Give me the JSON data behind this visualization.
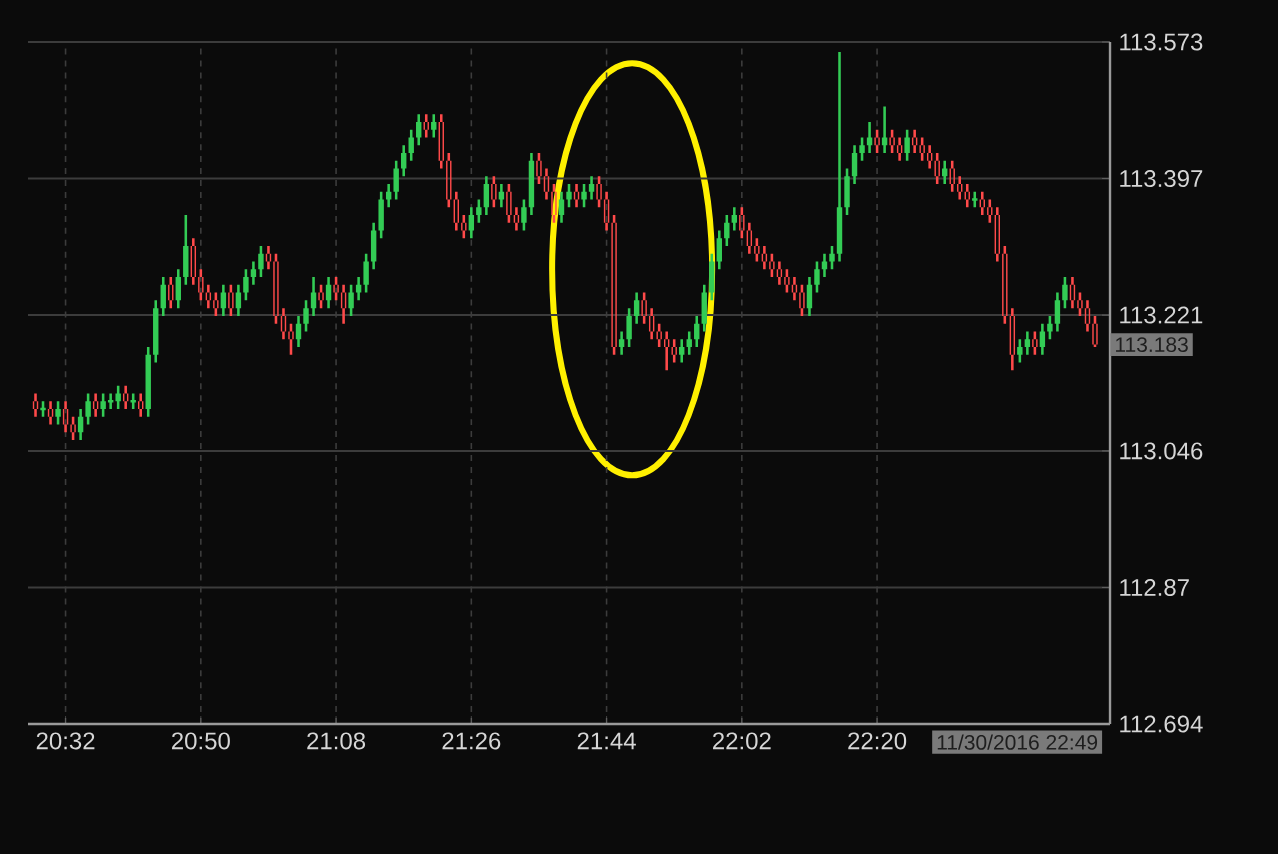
{
  "chart_data": {
    "type": "candlestick",
    "x": [
      "2016-11-30T20:28",
      "2016-11-30T20:29",
      "2016-11-30T20:30",
      "2016-11-30T20:31",
      "2016-11-30T20:32",
      "2016-11-30T20:33",
      "2016-11-30T20:34",
      "2016-11-30T20:35",
      "2016-11-30T20:36",
      "2016-11-30T20:37",
      "2016-11-30T20:38",
      "2016-11-30T20:39",
      "2016-11-30T20:40",
      "2016-11-30T20:41",
      "2016-11-30T20:42",
      "2016-11-30T20:43",
      "2016-11-30T20:44",
      "2016-11-30T20:45",
      "2016-11-30T20:46",
      "2016-11-30T20:47",
      "2016-11-30T20:48",
      "2016-11-30T20:49",
      "2016-11-30T20:50",
      "2016-11-30T20:51",
      "2016-11-30T20:52",
      "2016-11-30T20:53",
      "2016-11-30T20:54",
      "2016-11-30T20:55",
      "2016-11-30T20:56",
      "2016-11-30T20:57",
      "2016-11-30T20:58",
      "2016-11-30T20:59",
      "2016-11-30T21:00",
      "2016-11-30T21:01",
      "2016-11-30T21:02",
      "2016-11-30T21:03",
      "2016-11-30T21:04",
      "2016-11-30T21:05",
      "2016-11-30T21:06",
      "2016-11-30T21:07",
      "2016-11-30T21:08",
      "2016-11-30T21:09",
      "2016-11-30T21:10",
      "2016-11-30T21:11",
      "2016-11-30T21:12",
      "2016-11-30T21:13",
      "2016-11-30T21:14",
      "2016-11-30T21:15",
      "2016-11-30T21:16",
      "2016-11-30T21:17",
      "2016-11-30T21:18",
      "2016-11-30T21:19",
      "2016-11-30T21:20",
      "2016-11-30T21:21",
      "2016-11-30T21:22",
      "2016-11-30T21:23",
      "2016-11-30T21:24",
      "2016-11-30T21:25",
      "2016-11-30T21:26",
      "2016-11-30T21:27",
      "2016-11-30T21:28",
      "2016-11-30T21:29",
      "2016-11-30T21:30",
      "2016-11-30T21:31",
      "2016-11-30T21:32",
      "2016-11-30T21:33",
      "2016-11-30T21:34",
      "2016-11-30T21:35",
      "2016-11-30T21:36",
      "2016-11-30T21:37",
      "2016-11-30T21:38",
      "2016-11-30T21:39",
      "2016-11-30T21:40",
      "2016-11-30T21:41",
      "2016-11-30T21:42",
      "2016-11-30T21:43",
      "2016-11-30T21:44",
      "2016-11-30T21:45",
      "2016-11-30T21:46",
      "2016-11-30T21:47",
      "2016-11-30T21:48",
      "2016-11-30T21:49",
      "2016-11-30T21:50",
      "2016-11-30T21:51",
      "2016-11-30T21:52",
      "2016-11-30T21:53",
      "2016-11-30T21:54",
      "2016-11-30T21:55",
      "2016-11-30T21:56",
      "2016-11-30T21:57",
      "2016-11-30T21:58",
      "2016-11-30T21:59",
      "2016-11-30T22:00",
      "2016-11-30T22:01",
      "2016-11-30T22:02",
      "2016-11-30T22:03",
      "2016-11-30T22:04",
      "2016-11-30T22:05",
      "2016-11-30T22:06",
      "2016-11-30T22:07",
      "2016-11-30T22:08",
      "2016-11-30T22:09",
      "2016-11-30T22:10",
      "2016-11-30T22:11",
      "2016-11-30T22:12",
      "2016-11-30T22:13",
      "2016-11-30T22:14",
      "2016-11-30T22:15",
      "2016-11-30T22:16",
      "2016-11-30T22:17",
      "2016-11-30T22:18",
      "2016-11-30T22:19",
      "2016-11-30T22:20",
      "2016-11-30T22:21",
      "2016-11-30T22:22",
      "2016-11-30T22:23",
      "2016-11-30T22:24",
      "2016-11-30T22:25",
      "2016-11-30T22:26",
      "2016-11-30T22:27",
      "2016-11-30T22:28",
      "2016-11-30T22:29",
      "2016-11-30T22:30",
      "2016-11-30T22:31",
      "2016-11-30T22:32",
      "2016-11-30T22:33",
      "2016-11-30T22:34",
      "2016-11-30T22:35",
      "2016-11-30T22:36",
      "2016-11-30T22:37",
      "2016-11-30T22:38",
      "2016-11-30T22:39",
      "2016-11-30T22:40",
      "2016-11-30T22:41",
      "2016-11-30T22:42",
      "2016-11-30T22:43",
      "2016-11-30T22:44",
      "2016-11-30T22:45",
      "2016-11-30T22:46",
      "2016-11-30T22:47",
      "2016-11-30T22:48",
      "2016-11-30T22:49"
    ],
    "ohlc": [
      [
        113.11,
        113.12,
        113.09,
        113.1
      ],
      [
        113.1,
        113.11,
        113.09,
        113.1
      ],
      [
        113.1,
        113.11,
        113.08,
        113.09
      ],
      [
        113.09,
        113.11,
        113.08,
        113.1
      ],
      [
        113.1,
        113.11,
        113.07,
        113.08
      ],
      [
        113.08,
        113.09,
        113.06,
        113.07
      ],
      [
        113.07,
        113.1,
        113.06,
        113.09
      ],
      [
        113.09,
        113.12,
        113.08,
        113.11
      ],
      [
        113.11,
        113.12,
        113.09,
        113.1
      ],
      [
        113.1,
        113.12,
        113.09,
        113.11
      ],
      [
        113.11,
        113.12,
        113.1,
        113.11
      ],
      [
        113.11,
        113.13,
        113.1,
        113.12
      ],
      [
        113.12,
        113.13,
        113.1,
        113.11
      ],
      [
        113.11,
        113.12,
        113.1,
        113.11
      ],
      [
        113.11,
        113.12,
        113.09,
        113.1
      ],
      [
        113.1,
        113.18,
        113.09,
        113.17
      ],
      [
        113.17,
        113.24,
        113.16,
        113.23
      ],
      [
        113.23,
        113.27,
        113.22,
        113.26
      ],
      [
        113.26,
        113.27,
        113.23,
        113.24
      ],
      [
        113.24,
        113.28,
        113.23,
        113.27
      ],
      [
        113.27,
        113.35,
        113.26,
        113.31
      ],
      [
        113.31,
        113.32,
        113.26,
        113.27
      ],
      [
        113.27,
        113.28,
        113.24,
        113.25
      ],
      [
        113.25,
        113.26,
        113.23,
        113.24
      ],
      [
        113.24,
        113.25,
        113.22,
        113.23
      ],
      [
        113.23,
        113.26,
        113.22,
        113.25
      ],
      [
        113.25,
        113.26,
        113.22,
        113.23
      ],
      [
        113.23,
        113.26,
        113.22,
        113.25
      ],
      [
        113.25,
        113.28,
        113.24,
        113.27
      ],
      [
        113.27,
        113.29,
        113.26,
        113.28
      ],
      [
        113.28,
        113.31,
        113.27,
        113.3
      ],
      [
        113.3,
        113.31,
        113.28,
        113.29
      ],
      [
        113.29,
        113.3,
        113.21,
        113.22
      ],
      [
        113.22,
        113.23,
        113.19,
        113.2
      ],
      [
        113.2,
        113.21,
        113.17,
        113.19
      ],
      [
        113.19,
        113.22,
        113.18,
        113.21
      ],
      [
        113.21,
        113.24,
        113.2,
        113.23
      ],
      [
        113.23,
        113.27,
        113.22,
        113.25
      ],
      [
        113.25,
        113.26,
        113.23,
        113.24
      ],
      [
        113.24,
        113.27,
        113.23,
        113.26
      ],
      [
        113.26,
        113.27,
        113.24,
        113.25
      ],
      [
        113.25,
        113.26,
        113.21,
        113.23
      ],
      [
        113.23,
        113.26,
        113.22,
        113.25
      ],
      [
        113.25,
        113.27,
        113.24,
        113.26
      ],
      [
        113.26,
        113.3,
        113.25,
        113.29
      ],
      [
        113.29,
        113.34,
        113.28,
        113.33
      ],
      [
        113.33,
        113.38,
        113.32,
        113.37
      ],
      [
        113.37,
        113.39,
        113.36,
        113.38
      ],
      [
        113.38,
        113.42,
        113.37,
        113.41
      ],
      [
        113.41,
        113.44,
        113.4,
        113.43
      ],
      [
        113.43,
        113.46,
        113.42,
        113.45
      ],
      [
        113.45,
        113.48,
        113.44,
        113.47
      ],
      [
        113.47,
        113.48,
        113.45,
        113.46
      ],
      [
        113.46,
        113.48,
        113.45,
        113.47
      ],
      [
        113.47,
        113.48,
        113.41,
        113.42
      ],
      [
        113.42,
        113.43,
        113.36,
        113.37
      ],
      [
        113.37,
        113.38,
        113.33,
        113.34
      ],
      [
        113.34,
        113.35,
        113.32,
        113.33
      ],
      [
        113.33,
        113.36,
        113.32,
        113.35
      ],
      [
        113.35,
        113.37,
        113.34,
        113.36
      ],
      [
        113.36,
        113.4,
        113.35,
        113.39
      ],
      [
        113.39,
        113.4,
        113.36,
        113.37
      ],
      [
        113.37,
        113.39,
        113.36,
        113.38
      ],
      [
        113.38,
        113.39,
        113.34,
        113.35
      ],
      [
        113.35,
        113.36,
        113.33,
        113.34
      ],
      [
        113.34,
        113.37,
        113.33,
        113.36
      ],
      [
        113.36,
        113.43,
        113.35,
        113.42
      ],
      [
        113.42,
        113.43,
        113.39,
        113.4
      ],
      [
        113.4,
        113.41,
        113.37,
        113.38
      ],
      [
        113.38,
        113.39,
        113.34,
        113.35
      ],
      [
        113.35,
        113.38,
        113.34,
        113.37
      ],
      [
        113.37,
        113.39,
        113.36,
        113.38
      ],
      [
        113.38,
        113.39,
        113.36,
        113.37
      ],
      [
        113.37,
        113.39,
        113.36,
        113.38
      ],
      [
        113.38,
        113.4,
        113.37,
        113.39
      ],
      [
        113.39,
        113.4,
        113.36,
        113.37
      ],
      [
        113.37,
        113.38,
        113.33,
        113.34
      ],
      [
        113.34,
        113.35,
        113.17,
        113.18
      ],
      [
        113.18,
        113.2,
        113.17,
        113.19
      ],
      [
        113.19,
        113.23,
        113.18,
        113.22
      ],
      [
        113.22,
        113.25,
        113.21,
        113.24
      ],
      [
        113.24,
        113.25,
        113.21,
        113.22
      ],
      [
        113.22,
        113.23,
        113.19,
        113.2
      ],
      [
        113.2,
        113.21,
        113.18,
        113.19
      ],
      [
        113.19,
        113.2,
        113.15,
        113.18
      ],
      [
        113.18,
        113.19,
        113.16,
        113.17
      ],
      [
        113.17,
        113.19,
        113.16,
        113.18
      ],
      [
        113.18,
        113.2,
        113.17,
        113.19
      ],
      [
        113.19,
        113.22,
        113.18,
        113.21
      ],
      [
        113.21,
        113.26,
        113.2,
        113.25
      ],
      [
        113.25,
        113.3,
        113.24,
        113.29
      ],
      [
        113.29,
        113.33,
        113.28,
        113.32
      ],
      [
        113.32,
        113.35,
        113.31,
        113.34
      ],
      [
        113.34,
        113.36,
        113.33,
        113.35
      ],
      [
        113.35,
        113.36,
        113.32,
        113.33
      ],
      [
        113.33,
        113.34,
        113.3,
        113.31
      ],
      [
        113.31,
        113.32,
        113.29,
        113.3
      ],
      [
        113.3,
        113.31,
        113.28,
        113.29
      ],
      [
        113.29,
        113.3,
        113.27,
        113.28
      ],
      [
        113.28,
        113.29,
        113.26,
        113.27
      ],
      [
        113.27,
        113.28,
        113.25,
        113.26
      ],
      [
        113.26,
        113.27,
        113.24,
        113.25
      ],
      [
        113.25,
        113.26,
        113.22,
        113.23
      ],
      [
        113.23,
        113.27,
        113.22,
        113.26
      ],
      [
        113.26,
        113.29,
        113.25,
        113.28
      ],
      [
        113.28,
        113.3,
        113.27,
        113.29
      ],
      [
        113.29,
        113.31,
        113.28,
        113.3
      ],
      [
        113.3,
        113.56,
        113.29,
        113.36
      ],
      [
        113.36,
        113.41,
        113.35,
        113.4
      ],
      [
        113.4,
        113.44,
        113.39,
        113.43
      ],
      [
        113.43,
        113.45,
        113.42,
        113.44
      ],
      [
        113.44,
        113.47,
        113.43,
        113.45
      ],
      [
        113.45,
        113.46,
        113.43,
        113.44
      ],
      [
        113.44,
        113.49,
        113.43,
        113.45
      ],
      [
        113.45,
        113.46,
        113.43,
        113.44
      ],
      [
        113.44,
        113.45,
        113.42,
        113.43
      ],
      [
        113.43,
        113.46,
        113.42,
        113.45
      ],
      [
        113.45,
        113.46,
        113.43,
        113.44
      ],
      [
        113.44,
        113.45,
        113.42,
        113.43
      ],
      [
        113.43,
        113.44,
        113.41,
        113.42
      ],
      [
        113.42,
        113.43,
        113.39,
        113.4
      ],
      [
        113.4,
        113.42,
        113.39,
        113.41
      ],
      [
        113.41,
        113.42,
        113.38,
        113.39
      ],
      [
        113.39,
        113.4,
        113.37,
        113.38
      ],
      [
        113.38,
        113.39,
        113.36,
        113.37
      ],
      [
        113.37,
        113.38,
        113.36,
        113.37
      ],
      [
        113.37,
        113.38,
        113.35,
        113.36
      ],
      [
        113.36,
        113.37,
        113.34,
        113.35
      ],
      [
        113.35,
        113.36,
        113.29,
        113.3
      ],
      [
        113.3,
        113.31,
        113.21,
        113.22
      ],
      [
        113.22,
        113.23,
        113.15,
        113.17
      ],
      [
        113.17,
        113.19,
        113.16,
        113.18
      ],
      [
        113.18,
        113.2,
        113.17,
        113.19
      ],
      [
        113.19,
        113.2,
        113.17,
        113.18
      ],
      [
        113.18,
        113.21,
        113.17,
        113.2
      ],
      [
        113.2,
        113.22,
        113.19,
        113.21
      ],
      [
        113.21,
        113.25,
        113.2,
        113.24
      ],
      [
        113.24,
        113.27,
        113.23,
        113.26
      ],
      [
        113.26,
        113.27,
        113.23,
        113.24
      ],
      [
        113.24,
        113.25,
        113.22,
        113.23
      ],
      [
        113.23,
        113.24,
        113.2,
        113.21
      ],
      [
        113.21,
        113.22,
        113.18,
        113.183
      ]
    ],
    "xlim": [
      "2016-11-30T20:27",
      "2016-11-30T22:51"
    ],
    "xticks": [
      {
        "value": "2016-11-30T20:32",
        "label": "20:32"
      },
      {
        "value": "2016-11-30T20:50",
        "label": "20:50"
      },
      {
        "value": "2016-11-30T21:08",
        "label": "21:08"
      },
      {
        "value": "2016-11-30T21:26",
        "label": "21:26"
      },
      {
        "value": "2016-11-30T21:44",
        "label": "21:44"
      },
      {
        "value": "2016-11-30T22:02",
        "label": "22:02"
      },
      {
        "value": "2016-11-30T22:20",
        "label": "22:20"
      }
    ],
    "ylim": [
      112.694,
      113.573
    ],
    "yticks": [
      112.694,
      112.87,
      113.046,
      113.221,
      113.397,
      113.573
    ],
    "grid": true,
    "annotations": [
      "113.183",
      "11/30/2016 22:49"
    ]
  }
}
